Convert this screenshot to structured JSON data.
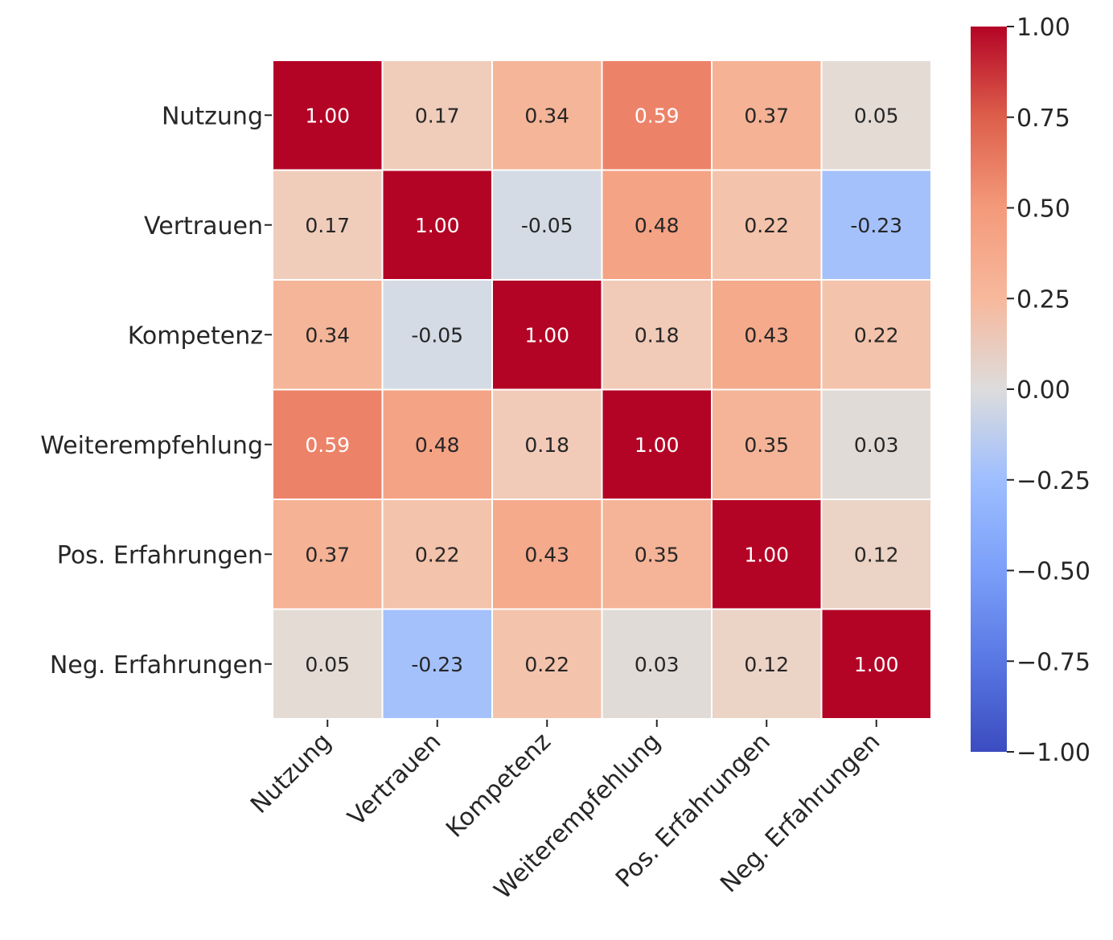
{
  "chart_data": {
    "type": "heatmap",
    "row_labels": [
      "Nutzung",
      "Vertrauen",
      "Kompetenz",
      "Weiterempfehlung",
      "Pos. Erfahrungen",
      "Neg. Erfahrungen"
    ],
    "col_labels": [
      "Nutzung",
      "Vertrauen",
      "Kompetenz",
      "Weiterempfehlung",
      "Pos. Erfahrungen",
      "Neg. Erfahrungen"
    ],
    "values": [
      [
        1.0,
        0.17,
        0.34,
        0.59,
        0.37,
        0.05
      ],
      [
        0.17,
        1.0,
        -0.05,
        0.48,
        0.22,
        -0.23
      ],
      [
        0.34,
        -0.05,
        1.0,
        0.18,
        0.43,
        0.22
      ],
      [
        0.59,
        0.48,
        0.18,
        1.0,
        0.35,
        0.03
      ],
      [
        0.37,
        0.22,
        0.43,
        0.35,
        1.0,
        0.12
      ],
      [
        0.05,
        -0.23,
        0.22,
        0.03,
        0.12,
        1.0
      ]
    ],
    "cell_labels": [
      [
        "1.00",
        "0.17",
        "0.34",
        "0.59",
        "0.37",
        "0.05"
      ],
      [
        "0.17",
        "1.00",
        "-0.05",
        "0.48",
        "0.22",
        "-0.23"
      ],
      [
        "0.34",
        "-0.05",
        "1.00",
        "0.18",
        "0.43",
        "0.22"
      ],
      [
        "0.59",
        "0.48",
        "0.18",
        "1.00",
        "0.35",
        "0.03"
      ],
      [
        "0.37",
        "0.22",
        "0.43",
        "0.35",
        "1.00",
        "0.12"
      ],
      [
        "0.05",
        "-0.23",
        "0.22",
        "0.03",
        "0.12",
        "1.00"
      ]
    ],
    "colormap": "coolwarm",
    "vmin": -1.0,
    "vmax": 1.0,
    "colorbar": {
      "ticks": [
        1.0,
        0.75,
        0.5,
        0.25,
        0.0,
        -0.25,
        -0.5,
        -0.75,
        -1.0
      ],
      "tick_labels": [
        "1.00",
        "0.75",
        "0.50",
        "0.25",
        "0.00",
        "−0.25",
        "−0.50",
        "−0.75",
        "−1.00"
      ],
      "placement": "right"
    },
    "grid_line_color": "#ffffff",
    "text_color_dark": "#262626",
    "text_color_light": "#ffffff"
  }
}
